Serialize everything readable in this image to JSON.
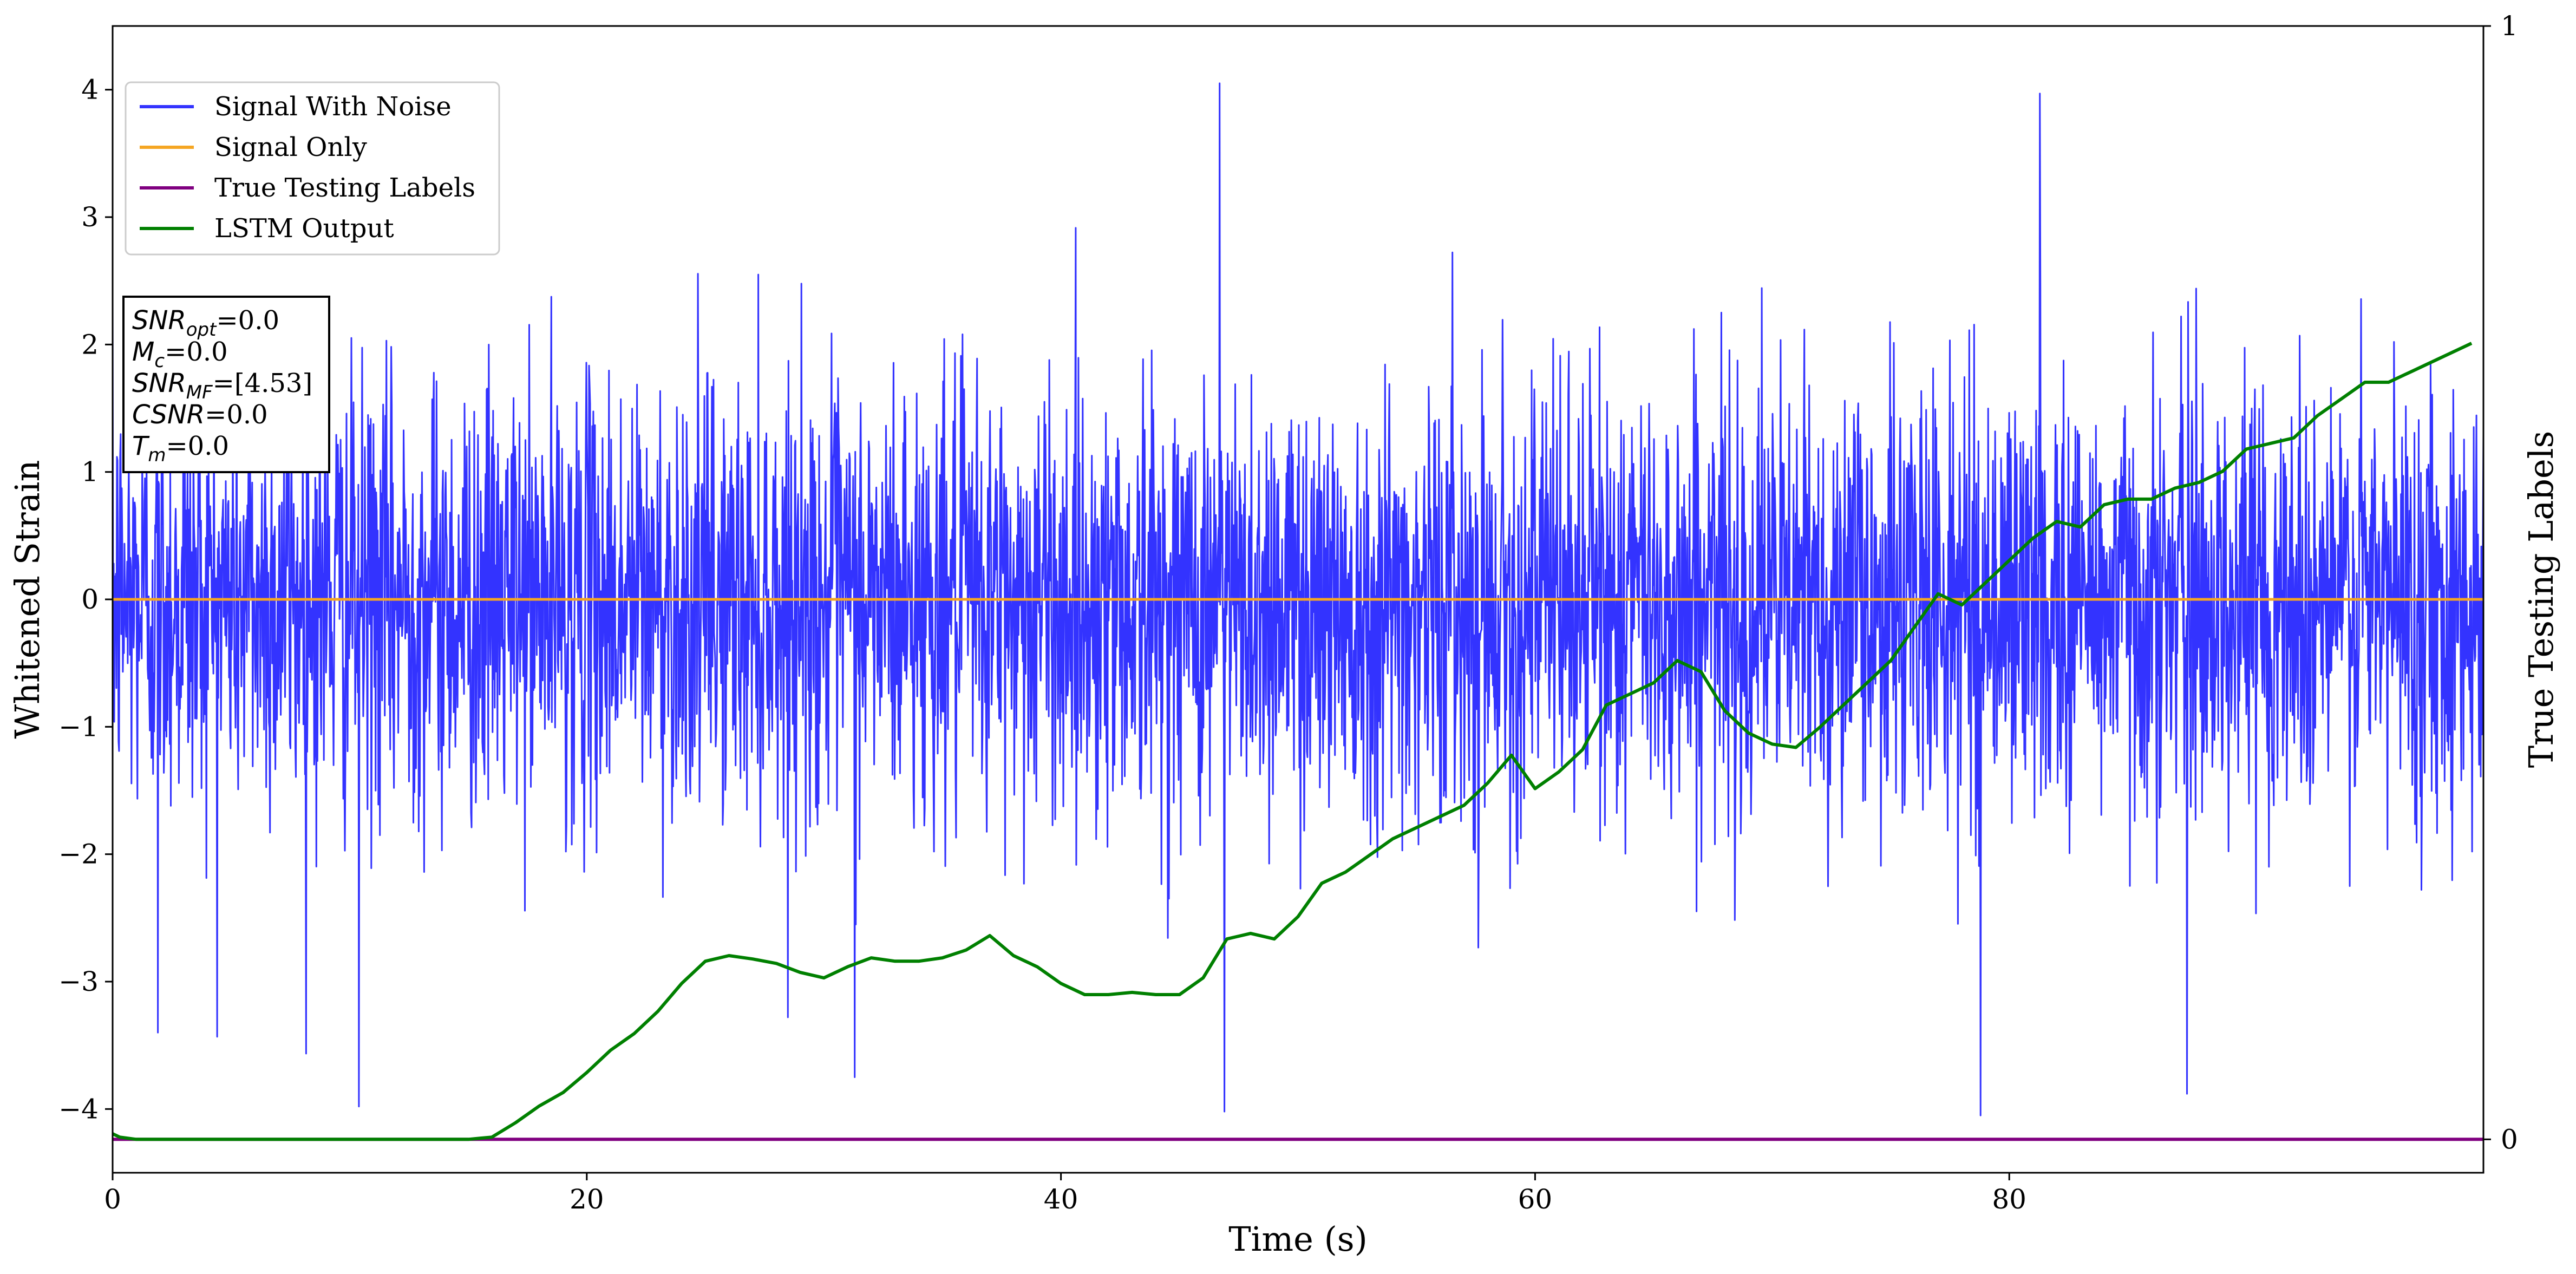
{
  "chart_data": {
    "type": "line",
    "title": "",
    "xlabel": "Time (s)",
    "ylabel": "Whitened Strain",
    "ylabel_right": "True Testing Labels",
    "xlim": [
      0,
      100
    ],
    "ylim": [
      -4.5,
      4.5
    ],
    "ylim_right": [
      -0.03,
      1.0
    ],
    "x_ticks": [
      0,
      20,
      40,
      60,
      80
    ],
    "y_ticks": [
      -4,
      -3,
      -2,
      -1,
      0,
      1,
      2,
      3,
      4
    ],
    "y_ticks_right": [
      0,
      1
    ],
    "grid": false,
    "legend_position": "top-left",
    "colors": {
      "signal_with_noise": "#3333ff",
      "signal_only": "#f5a623",
      "true_labels": "#800080",
      "lstm_output": "#008000"
    },
    "series": [
      {
        "name": "Signal With Noise",
        "kind": "noise",
        "axis": "left",
        "description_values": {
          "mean": 0.0,
          "std": 0.85,
          "max": 4.05,
          "min": -4.05
        },
        "notable_spikes": [
          {
            "x": 46.7,
            "y": 4.05
          },
          {
            "x": 81.3,
            "y": 3.97
          },
          {
            "x": 78.8,
            "y": -4.05
          },
          {
            "x": 46.9,
            "y": -4.02
          },
          {
            "x": 10.4,
            "y": -3.98
          },
          {
            "x": 87.5,
            "y": -3.88
          },
          {
            "x": 31.3,
            "y": -3.75
          },
          {
            "x": 1.9,
            "y": -3.4
          }
        ]
      },
      {
        "name": "Signal Only",
        "axis": "left",
        "x": [
          0,
          100
        ],
        "y": [
          0.0,
          0.0
        ]
      },
      {
        "name": "True Testing Labels",
        "axis": "right",
        "x": [
          0,
          100
        ],
        "y": [
          0.0,
          0.0
        ]
      },
      {
        "name": "LSTM Output",
        "axis": "right",
        "x": [
          0,
          0.3,
          1,
          5,
          10,
          15,
          16,
          17,
          18,
          19,
          20,
          21,
          22,
          23,
          24,
          25,
          26,
          27,
          28,
          29,
          30,
          31,
          32,
          33,
          34,
          35,
          36,
          37,
          38,
          39,
          40,
          41,
          42,
          43,
          44,
          45,
          46,
          47,
          48,
          49,
          50,
          51,
          52,
          53,
          54,
          55,
          56,
          57,
          58,
          59,
          60,
          61,
          62,
          63,
          64,
          65,
          66,
          67,
          68,
          69,
          70,
          71,
          72,
          73,
          74,
          75,
          76,
          77,
          78,
          79,
          80,
          81,
          82,
          83,
          84,
          85,
          86,
          87,
          88,
          89,
          90,
          91,
          92,
          93,
          94,
          95,
          96,
          97,
          98,
          99.5
        ],
        "y": [
          0.005,
          0.002,
          0.0,
          0.0,
          0.0,
          0.0,
          0.002,
          0.015,
          0.03,
          0.042,
          0.06,
          0.08,
          0.095,
          0.115,
          0.14,
          0.16,
          0.165,
          0.162,
          0.158,
          0.15,
          0.145,
          0.155,
          0.163,
          0.16,
          0.16,
          0.163,
          0.17,
          0.183,
          0.165,
          0.155,
          0.14,
          0.13,
          0.13,
          0.132,
          0.13,
          0.13,
          0.145,
          0.18,
          0.185,
          0.18,
          0.2,
          0.23,
          0.24,
          0.255,
          0.27,
          0.28,
          0.29,
          0.3,
          0.32,
          0.345,
          0.315,
          0.33,
          0.35,
          0.39,
          0.4,
          0.41,
          0.43,
          0.42,
          0.385,
          0.365,
          0.355,
          0.352,
          0.37,
          0.39,
          0.41,
          0.43,
          0.46,
          0.49,
          0.48,
          0.5,
          0.52,
          0.54,
          0.555,
          0.55,
          0.57,
          0.575,
          0.575,
          0.585,
          0.59,
          0.6,
          0.62,
          0.625,
          0.63,
          0.65,
          0.665,
          0.68,
          0.68,
          0.69,
          0.7,
          0.715
        ]
      }
    ],
    "annotation": {
      "lines": [
        {
          "sym": "SNR",
          "sub": "opt",
          "rest": "=0.0"
        },
        {
          "sym": "M",
          "sub": "c",
          "rest": "=0.0"
        },
        {
          "sym": "SNR",
          "sub": "MF",
          "rest": "=[4.53]"
        },
        {
          "sym": "CSNR",
          "sub": "",
          "rest": "=0.0"
        },
        {
          "sym": "T",
          "sub": "m",
          "rest": "=0.0"
        }
      ]
    }
  }
}
